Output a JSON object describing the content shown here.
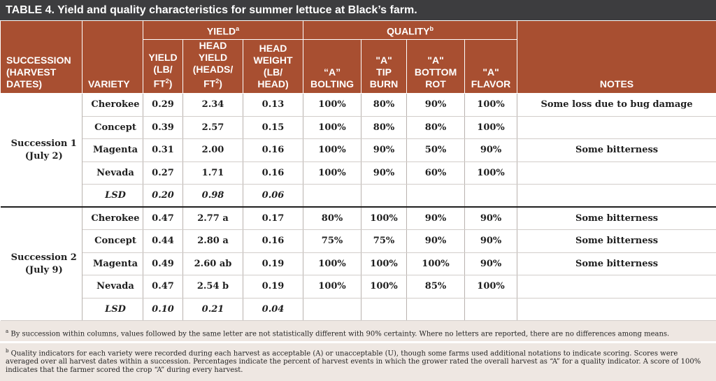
{
  "title": "TABLE 4. Yield and quality characteristics for summer lettuce at Black’s farm.",
  "headers": {
    "yield_group": "YIELD",
    "yield_group_sup": "a",
    "quality_group": "QUALITY",
    "quality_group_sup": "b",
    "succession_l1": "SUCCESSION",
    "succession_l2": "(HARVEST",
    "succession_l3": "DATES)",
    "variety": "VARIETY",
    "yield_l1": "YIELD",
    "yield_l2": "(LB/",
    "yield_l3": "FT",
    "yield_l3_sup": "2",
    "yield_l3_end": ")",
    "head_yield_l1": "HEAD",
    "head_yield_l2": "YIELD",
    "head_yield_l3": "(HEADS/",
    "head_yield_l4": "FT",
    "head_yield_l4_sup": "2",
    "head_yield_l4_end": ")",
    "head_weight_l1": "HEAD",
    "head_weight_l2": "WEIGHT",
    "head_weight_l3": "(LB/",
    "head_weight_l4": "HEAD)",
    "bolting_l1": "“A”",
    "bolting_l2": "BOLTING",
    "tipburn_l1": "\"A\"",
    "tipburn_l2": "TIP",
    "tipburn_l3": "BURN",
    "bottomrot_l1": "\"A\"",
    "bottomrot_l2": "BOTTOM",
    "bottomrot_l3": "ROT",
    "flavor_l1": "\"A\"",
    "flavor_l2": "FLAVOR",
    "notes": "NOTES"
  },
  "successions": [
    {
      "label_l1": "Succession 1",
      "label_l2": "(July 2)",
      "rows": [
        {
          "variety": "Cherokee",
          "yield": "0.29",
          "head_yield": "2.34",
          "head_weight": "0.13",
          "bolting": "100%",
          "tip_burn": "80%",
          "bottom_rot": "90%",
          "flavor": "100%",
          "notes": "Some loss due to bug damage"
        },
        {
          "variety": "Concept",
          "yield": "0.39",
          "head_yield": "2.57",
          "head_weight": "0.15",
          "bolting": "100%",
          "tip_burn": "80%",
          "bottom_rot": "80%",
          "flavor": "100%",
          "notes": ""
        },
        {
          "variety": "Magenta",
          "yield": "0.31",
          "head_yield": "2.00",
          "head_weight": "0.16",
          "bolting": "100%",
          "tip_burn": "90%",
          "bottom_rot": "50%",
          "flavor": "90%",
          "notes": "Some bitterness"
        },
        {
          "variety": "Nevada",
          "yield": "0.27",
          "head_yield": "1.71",
          "head_weight": "0.16",
          "bolting": "100%",
          "tip_burn": "90%",
          "bottom_rot": "60%",
          "flavor": "100%",
          "notes": ""
        },
        {
          "variety": "LSD",
          "yield": "0.20",
          "head_yield": "0.98",
          "head_weight": "0.06",
          "bolting": "",
          "tip_burn": "",
          "bottom_rot": "",
          "flavor": "",
          "notes": ""
        }
      ]
    },
    {
      "label_l1": "Succession 2",
      "label_l2": "(July 9)",
      "rows": [
        {
          "variety": "Cherokee",
          "yield": "0.47",
          "head_yield": "2.77 a",
          "head_weight": "0.17",
          "bolting": "80%",
          "tip_burn": "100%",
          "bottom_rot": "90%",
          "flavor": "90%",
          "notes": "Some bitterness"
        },
        {
          "variety": "Concept",
          "yield": "0.44",
          "head_yield": "2.80 a",
          "head_weight": "0.16",
          "bolting": "75%",
          "tip_burn": "75%",
          "bottom_rot": "90%",
          "flavor": "90%",
          "notes": "Some bitterness"
        },
        {
          "variety": "Magenta",
          "yield": "0.49",
          "head_yield": "2.60 ab",
          "head_weight": "0.19",
          "bolting": "100%",
          "tip_burn": "100%",
          "bottom_rot": "100%",
          "flavor": "90%",
          "notes": "Some bitterness"
        },
        {
          "variety": "Nevada",
          "yield": "0.47",
          "head_yield": "2.54 b",
          "head_weight": "0.19",
          "bolting": "100%",
          "tip_burn": "100%",
          "bottom_rot": "85%",
          "flavor": "100%",
          "notes": ""
        },
        {
          "variety": "LSD",
          "yield": "0.10",
          "head_yield": "0.21",
          "head_weight": "0.04",
          "bolting": "",
          "tip_burn": "",
          "bottom_rot": "",
          "flavor": "",
          "notes": ""
        }
      ]
    }
  ],
  "footnotes": {
    "a_marker": "a",
    "a_text": "By succession within columns, values followed by the same letter are not statistically different with 90% certainty. Where no letters are reported, there are no differences among means.",
    "b_marker": "b",
    "b_text": "Quality indicators for each variety were recorded during each harvest as acceptable (A) or unacceptable (U), though some farms used additional notations to indicate scoring.  Scores were averaged over all harvest dates within a succession. Percentages indicate the percent of harvest events in which the grower rated the overall harvest as “A” for a quality indicator. A score of 100% indicates that the farmer scored the crop “A” during every harvest."
  },
  "colors": {
    "title_bg": "#3d3d3f",
    "header_bg": "#a84f31",
    "footnote_bg": "#eee7e2"
  }
}
